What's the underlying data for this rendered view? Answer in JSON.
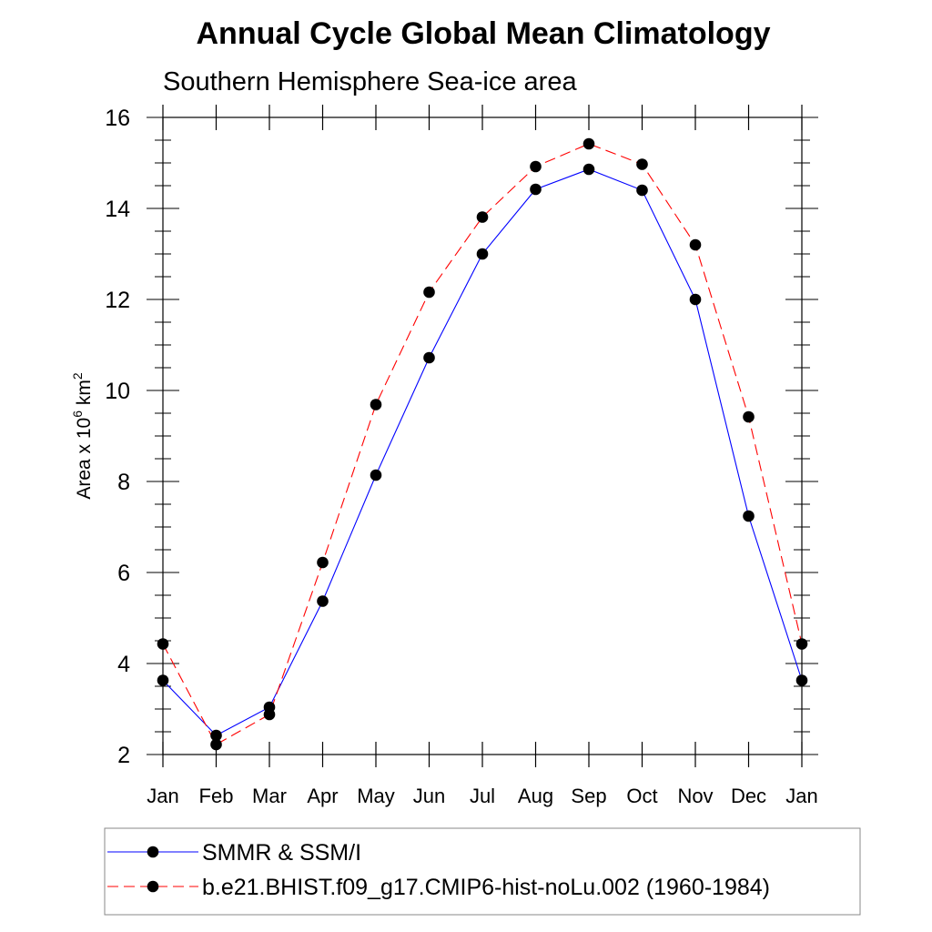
{
  "chart_data": {
    "type": "line",
    "title": "Annual Cycle Global Mean Climatology",
    "subtitle": "Southern Hemisphere Sea-ice area",
    "ylabel": {
      "prefix": "Area x 10",
      "exp1": "6",
      "mid": " km",
      "exp2": "2"
    },
    "categories": [
      "Jan",
      "Feb",
      "Mar",
      "Apr",
      "May",
      "Jun",
      "Jul",
      "Aug",
      "Sep",
      "Oct",
      "Nov",
      "Dec",
      "Jan"
    ],
    "ylim": [
      2,
      16
    ],
    "yticks": [
      "2",
      "4",
      "6",
      "8",
      "10",
      "12",
      "14",
      "16"
    ],
    "series": [
      {
        "name": "SMMR & SSM/I",
        "color": "#0000ff",
        "dash": "solid",
        "values": [
          3.63,
          2.42,
          3.04,
          5.37,
          8.14,
          10.72,
          13.0,
          14.42,
          14.86,
          14.4,
          12.0,
          7.24,
          3.63
        ]
      },
      {
        "name": "b.e21.BHIST.f09_g17.CMIP6-hist-noLu.002 (1960-1984)",
        "color": "#ff0000",
        "dash": "dashed",
        "values": [
          4.43,
          2.22,
          2.88,
          6.22,
          9.69,
          12.16,
          13.81,
          14.92,
          15.42,
          14.97,
          13.2,
          9.42,
          4.43
        ]
      }
    ],
    "legend_position": "bottom"
  }
}
